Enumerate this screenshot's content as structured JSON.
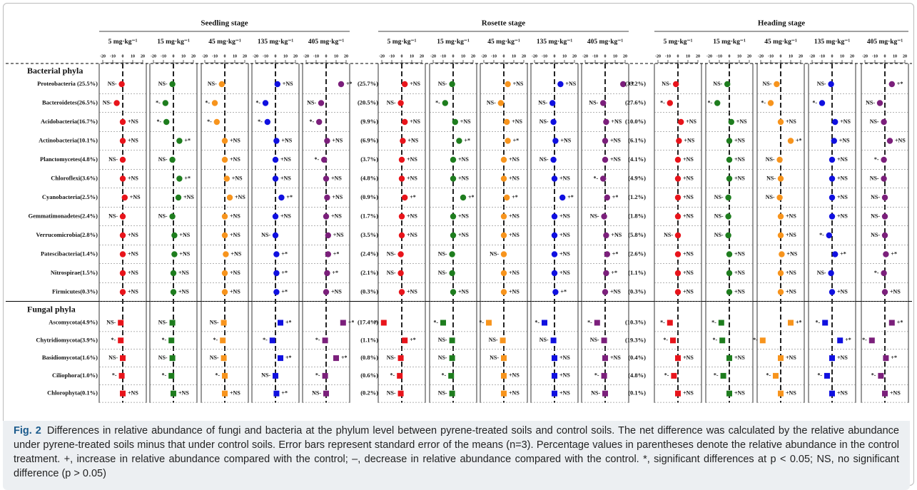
{
  "chart_data": {
    "type": "dot",
    "xlim": [
      -20,
      20
    ],
    "xticks": [
      -20,
      -10,
      0,
      10,
      20
    ],
    "groups": [
      {
        "name": "Bacterial phyla",
        "marker": "circle",
        "rows": [
          "Proteobacteria (25.5%)",
          "Bacteroidetes(26.5%)",
          "Acidobacteria(16.7%)",
          "Actinobacteria(10.1%)",
          "Planctomycetes(4.8%)",
          "Chloroflexi(3.6%)",
          "Cyanobacteria(2.5%)",
          "Gemmatimonadetes(2.4%)",
          "Verrucomicrobia(2.8%)",
          "Patescibacteria(1.4%)",
          "Nitrospirae(1.5%)",
          "Firmicutes(0.3%)"
        ]
      },
      {
        "name": "Fungal phyla",
        "marker": "square",
        "rows": [
          "Ascomycota(4.9%)",
          "Chytridiomycota(3.9%)",
          "Basidiomycota(1.6%)",
          "Ciliophora(1.0%)",
          "Chlorophyta(0.1%)"
        ]
      }
    ],
    "stages": [
      {
        "name": "Seedling stage",
        "panels": [
          {
            "label": "5 mg·kg⁻¹",
            "color": "#e8141b",
            "values": [
              [
                -1,
                -6,
                0,
                0,
                0,
                0,
                2,
                0,
                0,
                0,
                0,
                0
              ],
              [
                -2,
                -2,
                0,
                -1,
                0
              ]
            ],
            "labels": [
              [
                "NS-",
                "NS-",
                "+NS",
                "+NS",
                "NS-",
                "+NS",
                "+NS",
                "NS-",
                "+NS",
                "+NS",
                "+NS",
                "+NS"
              ],
              [
                "NS-",
                "*-",
                "NS-",
                "*-",
                "+NS"
              ]
            ]
          },
          {
            "label": "15 mg·kg⁻¹",
            "color": "#1e7d1e",
            "values": [
              [
                -1,
                -8,
                -7,
                6,
                -1,
                6,
                5,
                -1,
                1,
                1,
                0,
                0
              ],
              [
                -1,
                -2,
                -1,
                -2,
                0
              ]
            ],
            "labels": [
              [
                "NS-",
                "*-",
                "*-",
                "+*",
                "NS-",
                "+*",
                "+NS",
                "NS-",
                "+NS",
                "+NS",
                "+NS",
                "+NS"
              ],
              [
                "NS-",
                "*-",
                "NS-",
                "*-",
                "+NS"
              ]
            ]
          },
          {
            "label": "45 mg·kg⁻¹",
            "color": "#f7941d",
            "values": [
              [
                -3,
                -10,
                -8,
                0,
                0,
                2,
                5,
                0,
                0,
                1,
                0,
                0
              ],
              [
                -1,
                -2,
                -1,
                0,
                0
              ]
            ],
            "labels": [
              [
                "NS-",
                "*-",
                "*-",
                "+NS",
                "+NS",
                "+NS",
                "+NS",
                "+NS",
                "+NS",
                "+NS",
                "+NS",
                "+NS"
              ],
              [
                "NS-",
                "*-",
                "NS-",
                "*-",
                "+NS"
              ]
            ]
          },
          {
            "label": "135 mg·kg⁻¹",
            "color": "#1010e0",
            "values": [
              [
                2,
                -10,
                -8,
                1,
                0,
                0,
                6,
                0,
                0,
                1,
                1,
                1
              ],
              [
                5,
                -3,
                5,
                0,
                1
              ]
            ],
            "labels": [
              [
                "+NS",
                "*-",
                "*-",
                "+NS",
                "+NS",
                "+NS",
                "+*",
                "+NS",
                "NS-",
                "+*",
                "+*",
                "+*"
              ],
              [
                "+*",
                "*-",
                "+*",
                "NS-",
                "+*"
              ]
            ]
          },
          {
            "label": "405 mg·kg⁻¹",
            "color": "#7b1f7b",
            "values": [
              [
                15,
                -5,
                -7,
                1,
                -2,
                0,
                1,
                0,
                2,
                2,
                1,
                0
              ],
              [
                17,
                -1,
                10,
                -1,
                0
              ]
            ],
            "labels": [
              [
                "+*",
                "NS-",
                "*-",
                "+NS",
                "*-",
                "+NS",
                "+NS",
                "+NS",
                "+NS",
                "+*",
                "+*",
                "+NS"
              ],
              [
                "+*",
                "*-",
                "+*",
                "*-",
                "NS-"
              ]
            ]
          }
        ]
      },
      {
        "name": "Rosette stage",
        "percents": [
          [
            "(25.7%)",
            "(20.5%)",
            "(9.9%)",
            "(6.9%)",
            "(3.7%)",
            "(4.8%)",
            "(0.9%)",
            "(1.7%)",
            "(3.5%)",
            "(2.4%)",
            "(2.1%)",
            "(0.3%)"
          ],
          [
            "(17.4%)",
            "(1.1%)",
            "(0.8%)",
            "(0.6%)",
            "(0.2%)"
          ]
        ],
        "panels": [
          {
            "label": "5 mg·kg⁻¹",
            "color": "#e8141b",
            "values": [
              [
                3,
                -1,
                3,
                1,
                0,
                0,
                3,
                0,
                0,
                -1,
                -1,
                0
              ],
              [
                -18,
                3,
                -1,
                -2,
                -1
              ]
            ],
            "labels": [
              [
                "+NS",
                "NS-",
                "+NS",
                "+NS",
                "+NS",
                "+NS",
                "+*",
                "+NS",
                "+NS",
                "NS-",
                "NS-",
                "+NS"
              ],
              [
                "*-",
                "+*",
                "NS-",
                "*-",
                "NS-"
              ]
            ]
          },
          {
            "label": "15 mg·kg⁻¹",
            "color": "#1e7d1e",
            "values": [
              [
                -1,
                -8,
                2,
                6,
                0,
                0,
                10,
                0,
                0,
                -1,
                -1,
                0
              ],
              [
                -10,
                -1,
                -1,
                -2,
                -1
              ]
            ],
            "labels": [
              [
                "NS-",
                "*-",
                "+NS",
                "+*",
                "+NS",
                "+NS",
                "+*",
                "+NS",
                "+NS",
                "NS-",
                "NS-",
                "+NS"
              ],
              [
                "*-",
                "NS-",
                "NS-",
                "*-",
                "NS-"
              ]
            ]
          },
          {
            "label": "45 mg·kg⁻¹",
            "color": "#f7941d",
            "values": [
              [
                4,
                -3,
                3,
                4,
                0,
                0,
                3,
                0,
                0,
                0,
                0,
                0
              ],
              [
                -15,
                -1,
                0,
                0,
                0
              ]
            ],
            "labels": [
              [
                "+NS",
                "NS-",
                "+NS",
                "+*",
                "+NS",
                "+NS",
                "+*",
                "+NS",
                "+NS",
                "NS-",
                "+NS",
                "+NS"
              ],
              [
                "*-",
                "NS-",
                "NS-",
                "+NS",
                "+NS"
              ]
            ]
          },
          {
            "label": "135 mg·kg⁻¹",
            "color": "#1010e0",
            "values": [
              [
                6,
                -2,
                -1,
                1,
                -1,
                0,
                8,
                0,
                0,
                0,
                0,
                1
              ],
              [
                -10,
                -1,
                0,
                0,
                0
              ]
            ],
            "labels": [
              [
                "+NS",
                "NS-",
                "NS-",
                "+NS",
                "NS-",
                "+NS",
                "+*",
                "+NS",
                "+NS",
                "+NS",
                "+NS",
                "+*"
              ],
              [
                "*-",
                "NS-",
                "+NS",
                "+NS",
                "+NS"
              ]
            ]
          },
          {
            "label": "405 mg·kg⁻¹",
            "color": "#7b1f7b",
            "values": [
              [
                18,
                -2,
                1,
                0,
                0,
                -2,
                2,
                -1,
                1,
                2,
                1,
                0
              ],
              [
                -8,
                -1,
                0,
                -1,
                0
              ]
            ],
            "labels": [
              [
                "+*",
                "NS-",
                "+NS",
                "+NS",
                "+NS",
                "*-",
                "+*",
                "NS-",
                "+NS",
                "+*",
                "+*",
                "+NS"
              ],
              [
                "*-",
                "NS-",
                "+NS",
                "*-",
                "NS-"
              ]
            ]
          }
        ]
      },
      {
        "name": "Heading stage",
        "percents": [
          [
            "(33.2%)",
            "(27.6%)",
            "(10.0%)",
            "(6.1%)",
            "(4.1%)",
            "(4.9%)",
            "(1.2%)",
            "(1.8%)",
            "(5.8%)",
            "(2.6%)",
            "(1.1%)",
            "(0.3%)"
          ],
          [
            "(10.3%)",
            "(19.3%)",
            "(0.4%)",
            "(4.8%)",
            "(0.1%)"
          ]
        ],
        "panels": [
          {
            "label": "5 mg·kg⁻¹",
            "color": "#e8141b",
            "values": [
              [
                -2,
                -8,
                3,
                1,
                0,
                0,
                0,
                0,
                0,
                0,
                0,
                0
              ],
              [
                -8,
                -5,
                0,
                -4,
                0
              ]
            ],
            "labels": [
              [
                "NS-",
                "*-",
                "+NS",
                "+NS",
                "+NS",
                "+NS",
                "+NS",
                "+NS",
                "NS-",
                "+NS",
                "+NS",
                "+NS"
              ],
              [
                "*-",
                "*-",
                "+NS",
                "*-",
                "+NS"
              ]
            ]
          },
          {
            "label": "15 mg·kg⁻¹",
            "color": "#1e7d1e",
            "values": [
              [
                -2,
                -12,
                2,
                0,
                0,
                0,
                -1,
                -1,
                -1,
                0,
                0,
                0
              ],
              [
                -8,
                -7,
                0,
                -6,
                0
              ]
            ],
            "labels": [
              [
                "NS-",
                "*-",
                "+NS",
                "+NS",
                "+NS",
                "+NS",
                "NS-",
                "NS-",
                "NS-",
                "+NS",
                "+NS",
                "+NS"
              ],
              [
                "*-",
                "*-",
                "+NS",
                "*-",
                "+NS"
              ]
            ]
          },
          {
            "label": "45 mg·kg⁻¹",
            "color": "#f7941d",
            "values": [
              [
                -4,
                -10,
                0,
                10,
                -1,
                0,
                -1,
                0,
                0,
                1,
                0,
                0
              ],
              [
                10,
                -18,
                0,
                -5,
                0
              ]
            ],
            "labels": [
              [
                "NS-",
                "*-",
                "+NS",
                "+*",
                "NS-",
                "NS-",
                "NS-",
                "+NS",
                "+NS",
                "+NS",
                "+NS",
                "+NS"
              ],
              [
                "+*",
                "*-",
                "+NS",
                "*-",
                "+NS"
              ]
            ]
          },
          {
            "label": "135 mg·kg⁻¹",
            "color": "#1010e0",
            "values": [
              [
                -1,
                -10,
                3,
                2,
                0,
                0,
                0,
                0,
                -3,
                3,
                -1,
                0
              ],
              [
                -7,
                8,
                0,
                -5,
                0
              ]
            ],
            "labels": [
              [
                "NS-",
                "*-",
                "+NS",
                "+NS",
                "+NS",
                "+NS",
                "+NS",
                "+NS",
                "*-",
                "+*",
                "NS-",
                "+NS"
              ],
              [
                "*-",
                "+*",
                "+NS",
                "*-",
                "+NS"
              ]
            ]
          },
          {
            "label": "405 mg·kg⁻¹",
            "color": "#7b1f7b",
            "values": [
              [
                7,
                -5,
                -1,
                5,
                -1,
                -1,
                0,
                0,
                0,
                1,
                -1,
                0
              ],
              [
                7,
                -13,
                1,
                -4,
                0
              ]
            ],
            "labels": [
              [
                "+*",
                "NS-",
                "NS-",
                "+NS",
                "*-",
                "NS-",
                "NS-",
                "NS-",
                "NS-",
                "+*",
                "*-",
                "+NS"
              ],
              [
                "+*",
                "*-",
                "+*",
                "*-",
                "+NS"
              ]
            ]
          }
        ]
      }
    ],
    "caption": {
      "label": "Fig. 2",
      "text": "Differences in relative abundance of fungi and bacteria at the phylum level between pyrene-treated soils and control soils. The net difference was calculated by the relative abundance under pyrene-treated soils minus that under control soils. Error bars represent standard error of the means (n=3). Percentage values in parentheses denote the relative abundance in the control treatment. +, increase in relative abundance compared with the control; –, decrease in relative abundance compared with the control. *, significant differences at p < 0.05; NS, no significant difference (p > 0.05)"
    }
  }
}
